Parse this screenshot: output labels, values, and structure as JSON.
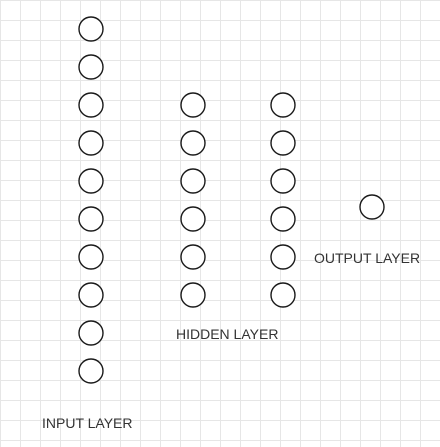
{
  "diagram": {
    "type": "neural-network",
    "colors": {
      "background": "#ffffff",
      "grid_lines": "#e6e6e6",
      "node_stroke": "#1a1a1a",
      "node_fill": "#ffffff",
      "label_text": "#333333"
    },
    "layers": [
      {
        "id": "input",
        "label": "INPUT LAYER",
        "node_count": 10
      },
      {
        "id": "hidden-1",
        "label": "HIDDEN LAYER",
        "node_count": 6
      },
      {
        "id": "hidden-2",
        "label": "",
        "node_count": 6
      },
      {
        "id": "output",
        "label": "OUTPUT LAYER",
        "node_count": 1
      }
    ]
  }
}
